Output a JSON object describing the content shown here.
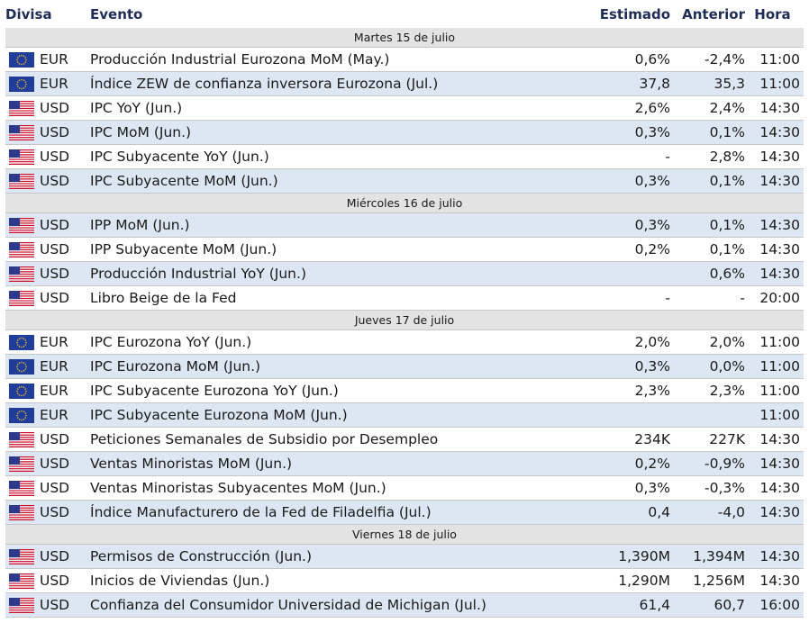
{
  "header": {
    "divisa": "Divisa",
    "evento": "Evento",
    "estimado": "Estimado",
    "anterior": "Anterior",
    "hora": "Hora"
  },
  "colors": {
    "header_text": "#1f2e57",
    "alt_row": "#dde7f3",
    "date_row": "#e3e3e3",
    "eu_blue": "#1f3d99",
    "eu_star": "#f2c12e",
    "us_red": "#c8102e",
    "us_blue": "#2d3a8c"
  },
  "sections": [
    {
      "date": "Martes 15 de julio",
      "rows": [
        {
          "flag": "eu-flag-icon",
          "currency": "EUR",
          "event": "Producción Industrial Eurozona MoM (May.)",
          "estimado": "0,6%",
          "anterior": "-2,4%",
          "hora": "11:00",
          "alt": false
        },
        {
          "flag": "eu-flag-icon",
          "currency": "EUR",
          "event": "Índice ZEW de confianza inversora Eurozona (Jul.)",
          "estimado": "37,8",
          "anterior": "35,3",
          "hora": "11:00",
          "alt": true
        },
        {
          "flag": "us-flag-icon",
          "currency": "USD",
          "event": "IPC YoY (Jun.)",
          "estimado": "2,6%",
          "anterior": "2,4%",
          "hora": "14:30",
          "alt": false
        },
        {
          "flag": "us-flag-icon",
          "currency": "USD",
          "event": "IPC MoM (Jun.)",
          "estimado": "0,3%",
          "anterior": "0,1%",
          "hora": "14:30",
          "alt": true
        },
        {
          "flag": "us-flag-icon",
          "currency": "USD",
          "event": "IPC Subyacente YoY (Jun.)",
          "estimado": "-",
          "anterior": "2,8%",
          "hora": "14:30",
          "alt": false
        },
        {
          "flag": "us-flag-icon",
          "currency": "USD",
          "event": "IPC Subyacente MoM (Jun.)",
          "estimado": "0,3%",
          "anterior": "0,1%",
          "hora": "14:30",
          "alt": true
        }
      ]
    },
    {
      "date": "Miércoles 16 de julio",
      "rows": [
        {
          "flag": "us-flag-icon",
          "currency": "USD",
          "event": "IPP MoM (Jun.)",
          "estimado": "0,3%",
          "anterior": "0,1%",
          "hora": "14:30",
          "alt": true
        },
        {
          "flag": "us-flag-icon",
          "currency": "USD",
          "event": "IPP Subyacente MoM (Jun.)",
          "estimado": "0,2%",
          "anterior": "0,1%",
          "hora": "14:30",
          "alt": false
        },
        {
          "flag": "us-flag-icon",
          "currency": "USD",
          "event": "Producción Industrial YoY (Jun.)",
          "estimado": "",
          "anterior": "0,6%",
          "hora": "14:30",
          "alt": true
        },
        {
          "flag": "us-flag-icon",
          "currency": "USD",
          "event": "Libro Beige de la Fed",
          "estimado": "-",
          "anterior": "-",
          "hora": "20:00",
          "alt": false
        }
      ]
    },
    {
      "date": "Jueves 17 de julio",
      "rows": [
        {
          "flag": "eu-flag-icon",
          "currency": "EUR",
          "event": "IPC Eurozona YoY (Jun.)",
          "estimado": "2,0%",
          "anterior": "2,0%",
          "hora": "11:00",
          "alt": false
        },
        {
          "flag": "eu-flag-icon",
          "currency": "EUR",
          "event": "IPC Eurozona MoM (Jun.)",
          "estimado": "0,3%",
          "anterior": "0,0%",
          "hora": "11:00",
          "alt": true
        },
        {
          "flag": "eu-flag-icon",
          "currency": "EUR",
          "event": "IPC Subyacente Eurozona YoY (Jun.)",
          "estimado": "2,3%",
          "anterior": "2,3%",
          "hora": "11:00",
          "alt": false
        },
        {
          "flag": "eu-flag-icon",
          "currency": "EUR",
          "event": "IPC Subyacente Eurozona MoM (Jun.)",
          "estimado": "",
          "anterior": "",
          "hora": "11:00",
          "alt": true
        },
        {
          "flag": "us-flag-icon",
          "currency": "USD",
          "event": "Peticiones Semanales de Subsidio por Desempleo",
          "estimado": "234K",
          "anterior": "227K",
          "hora": "14:30",
          "alt": false
        },
        {
          "flag": "us-flag-icon",
          "currency": "USD",
          "event": "Ventas Minoristas MoM (Jun.)",
          "estimado": "0,2%",
          "anterior": "-0,9%",
          "hora": "14:30",
          "alt": true
        },
        {
          "flag": "us-flag-icon",
          "currency": "USD",
          "event": "Ventas Minoristas Subyacentes MoM (Jun.)",
          "estimado": "0,3%",
          "anterior": "-0,3%",
          "hora": "14:30",
          "alt": false
        },
        {
          "flag": "us-flag-icon",
          "currency": "USD",
          "event": "Índice Manufacturero de la Fed de Filadelfia (Jul.)",
          "estimado": "0,4",
          "anterior": "-4,0",
          "hora": "14:30",
          "alt": true
        }
      ]
    },
    {
      "date": "Viernes 18 de julio",
      "rows": [
        {
          "flag": "us-flag-icon",
          "currency": "USD",
          "event": "Permisos de Construcción (Jun.)",
          "estimado": "1,390M",
          "anterior": "1,394M",
          "hora": "14:30",
          "alt": true
        },
        {
          "flag": "us-flag-icon",
          "currency": "USD",
          "event": "Inicios de Viviendas (Jun.)",
          "estimado": "1,290M",
          "anterior": "1,256M",
          "hora": "14:30",
          "alt": false
        },
        {
          "flag": "us-flag-icon",
          "currency": "USD",
          "event": "Confianza del Consumidor Universidad de Michigan (Jul.)",
          "estimado": "61,4",
          "anterior": "60,7",
          "hora": "16:00",
          "alt": true
        }
      ]
    }
  ]
}
